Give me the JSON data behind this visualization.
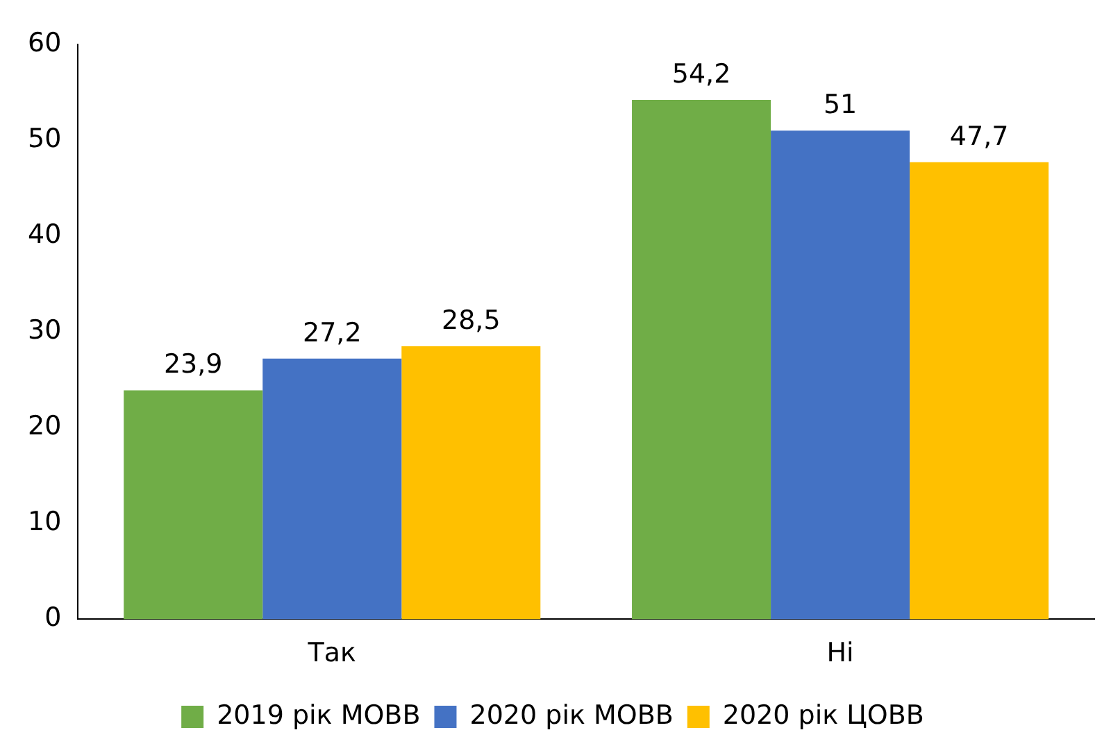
{
  "chart_data": {
    "type": "bar",
    "categories": [
      "Так",
      "Ні"
    ],
    "series": [
      {
        "name": "2019 рік МОВВ",
        "color": "#70ad47",
        "values": [
          23.9,
          54.2
        ],
        "value_labels": [
          "23,9",
          "54,2"
        ]
      },
      {
        "name": "2020 рік МОВВ",
        "color": "#4472c4",
        "values": [
          27.2,
          51
        ],
        "value_labels": [
          "27,2",
          "51"
        ]
      },
      {
        "name": "2020 рік ЦОВВ",
        "color": "#ffc000",
        "values": [
          28.5,
          47.7
        ],
        "value_labels": [
          "28,5",
          "47,7"
        ]
      }
    ],
    "ylim": [
      0,
      60
    ],
    "yticks": [
      0,
      10,
      20,
      30,
      40,
      50,
      60
    ],
    "grid": false,
    "legend": "bottom"
  }
}
